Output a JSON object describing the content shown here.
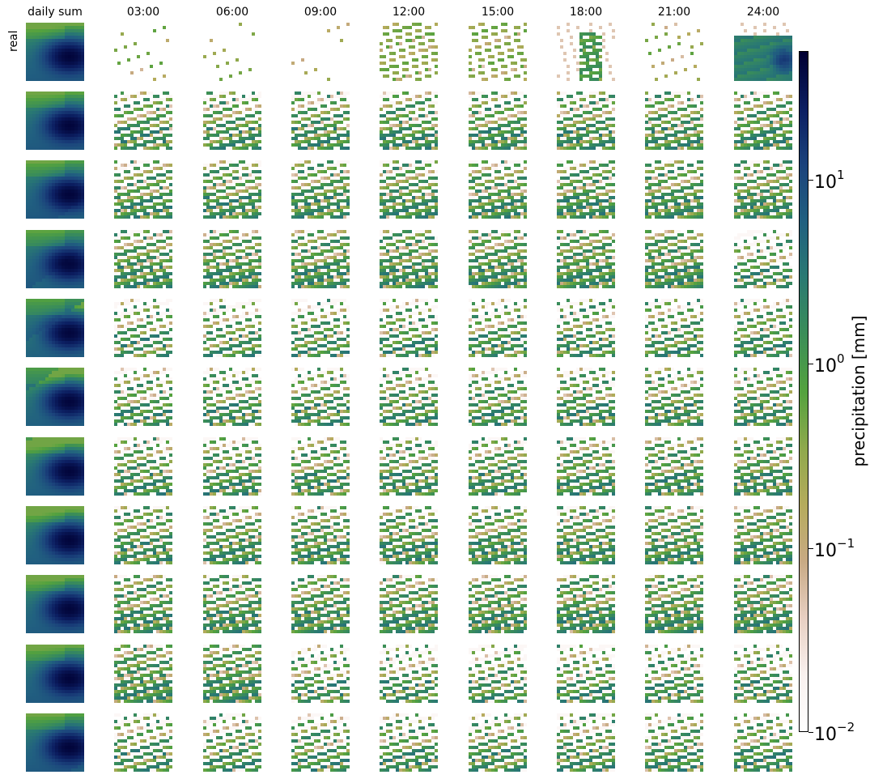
{
  "chart_data": {
    "type": "heatmap",
    "columns": [
      "daily sum",
      "03:00",
      "06:00",
      "09:00",
      "12:00",
      "15:00",
      "18:00",
      "21:00",
      "24:00"
    ],
    "rows": [
      "real",
      "",
      "",
      "",
      "",
      "",
      "",
      "",
      "",
      "",
      ""
    ],
    "grid_size": [
      18,
      18
    ],
    "colorbar": {
      "label": "precipitation [mm]",
      "scale": "log",
      "range": [
        0.01,
        50
      ],
      "ticks": [
        {
          "value": 0.01,
          "label_base": "10",
          "label_exp": "−2"
        },
        {
          "value": 0.1,
          "label_base": "10",
          "label_exp": "−1"
        },
        {
          "value": 1,
          "label_base": "10",
          "label_exp": "0"
        },
        {
          "value": 10,
          "label_base": "10",
          "label_exp": "1"
        }
      ],
      "colormap": [
        "#ffffff",
        "#f9f1ef",
        "#e8d0c3",
        "#c8aa84",
        "#b5ab5c",
        "#8fa94c",
        "#54a23e",
        "#3b8e58",
        "#2a7a72",
        "#216080",
        "#1b437c",
        "#0c1f62",
        "#000033"
      ]
    }
  }
}
